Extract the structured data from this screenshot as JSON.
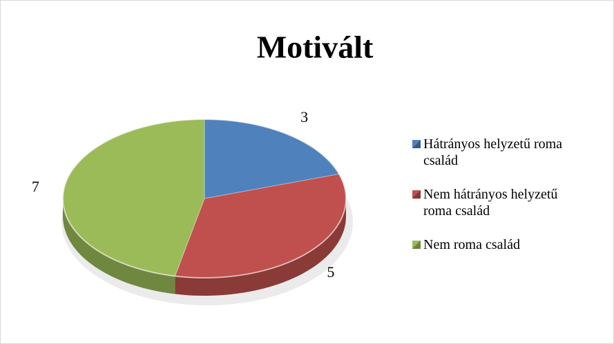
{
  "chart_data": {
    "type": "pie",
    "title": "Motivált",
    "categories": [
      "Hátrányos helyzetű roma család",
      "Nem hátrányos helyzetű roma család",
      "Nem roma család"
    ],
    "values": [
      3,
      5,
      7
    ],
    "colors": [
      "#4f81bd",
      "#c0504d",
      "#9bbb59"
    ],
    "legend": "right"
  }
}
